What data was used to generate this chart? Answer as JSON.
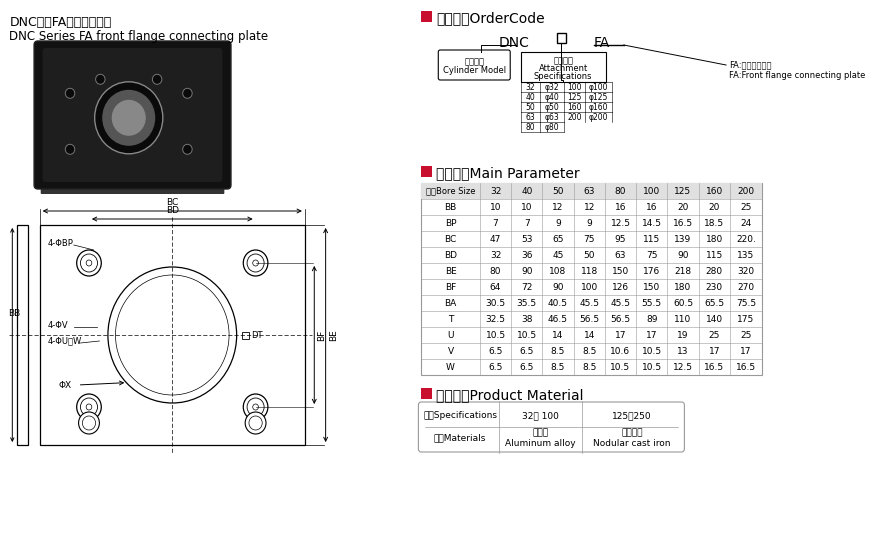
{
  "title_cn": "DNC系列FA前法兰连接板",
  "title_en": "DNC Series FA front flange connecting plate",
  "section1_title": "订货型号OrderCode",
  "section2_title": "主要参数Main Parameter",
  "section3_title": "产品材质Product Material",
  "order_code_box1_line1": "气缸型号",
  "order_code_box1_line2": "Cylinder Model",
  "order_code_box2_line1": "附件规格",
  "order_code_box2_line2": "Attachment",
  "order_code_box2_line3": "Specifications",
  "order_fa_label1": "FA:前法兰连接板",
  "order_fa_label2": "FA:Front flange connecting plate",
  "order_table_col1": [
    "32",
    "40",
    "50",
    "63",
    "80"
  ],
  "order_table_col2": [
    "φ32",
    "φ40",
    "φ50",
    "φ63",
    "φ80"
  ],
  "order_table_col3": [
    "100",
    "125",
    "160",
    "200",
    ""
  ],
  "order_table_col4": [
    "φ100",
    "φ125",
    "φ160",
    "φ200",
    ""
  ],
  "main_table_headers": [
    "缸径Bore Size",
    "32",
    "40",
    "50",
    "63",
    "80",
    "100",
    "125",
    "160",
    "200"
  ],
  "main_table_rows": [
    [
      "BB",
      "10",
      "10",
      "12",
      "12",
      "16",
      "16",
      "20",
      "20",
      "25"
    ],
    [
      "BP",
      "7",
      "7",
      "9",
      "9",
      "12.5",
      "14.5",
      "16.5",
      "18.5",
      "24"
    ],
    [
      "BC",
      "47",
      "53",
      "65",
      "75",
      "95",
      "115",
      "139",
      "180",
      "220."
    ],
    [
      "BD",
      "32",
      "36",
      "45",
      "50",
      "63",
      "75",
      "90",
      "115",
      "135"
    ],
    [
      "BE",
      "80",
      "90",
      "108",
      "118",
      "150",
      "176",
      "218",
      "280",
      "320"
    ],
    [
      "BF",
      "64",
      "72",
      "90",
      "100",
      "126",
      "150",
      "180",
      "230",
      "270"
    ],
    [
      "BA",
      "30.5",
      "35.5",
      "40.5",
      "45.5",
      "45.5",
      "55.5",
      "60.5",
      "65.5",
      "75.5"
    ],
    [
      "T",
      "32.5",
      "38",
      "46.5",
      "56.5",
      "56.5",
      "89",
      "110",
      "140",
      "175"
    ],
    [
      "U",
      "10.5",
      "10.5",
      "14",
      "14",
      "17",
      "17",
      "19",
      "25",
      "25"
    ],
    [
      "V",
      "6.5",
      "6.5",
      "8.5",
      "8.5",
      "10.6",
      "10.5",
      "13",
      "17",
      "17"
    ],
    [
      "W",
      "6.5",
      "6.5",
      "8.5",
      "8.5",
      "10.5",
      "10.5",
      "12.5",
      "16.5",
      "16.5"
    ]
  ],
  "mat_header": [
    "规格Specifications",
    "32～ 100",
    "125～250"
  ],
  "mat_row1": [
    "材质Materials",
    "铝合金\nAluminum alloy",
    "球墨铸铁\nNodular cast iron"
  ],
  "red_color": "#c8102e",
  "bg_color": "#ffffff",
  "gray_header_bg": "#e0e0e0",
  "table_line_color": "#999999",
  "text_color": "#000000",
  "draw_label_4bp": "4-ΦBP",
  "draw_label_4v": "4-ΦV",
  "draw_label_4u": "4-ΦU深W",
  "draw_label_x": "ΦX",
  "draw_label_dt": "DT",
  "draw_label_bf": "BF",
  "draw_label_be": "BE",
  "draw_label_bc": "BC",
  "draw_label_bd": "BD",
  "draw_label_bb": "BB"
}
